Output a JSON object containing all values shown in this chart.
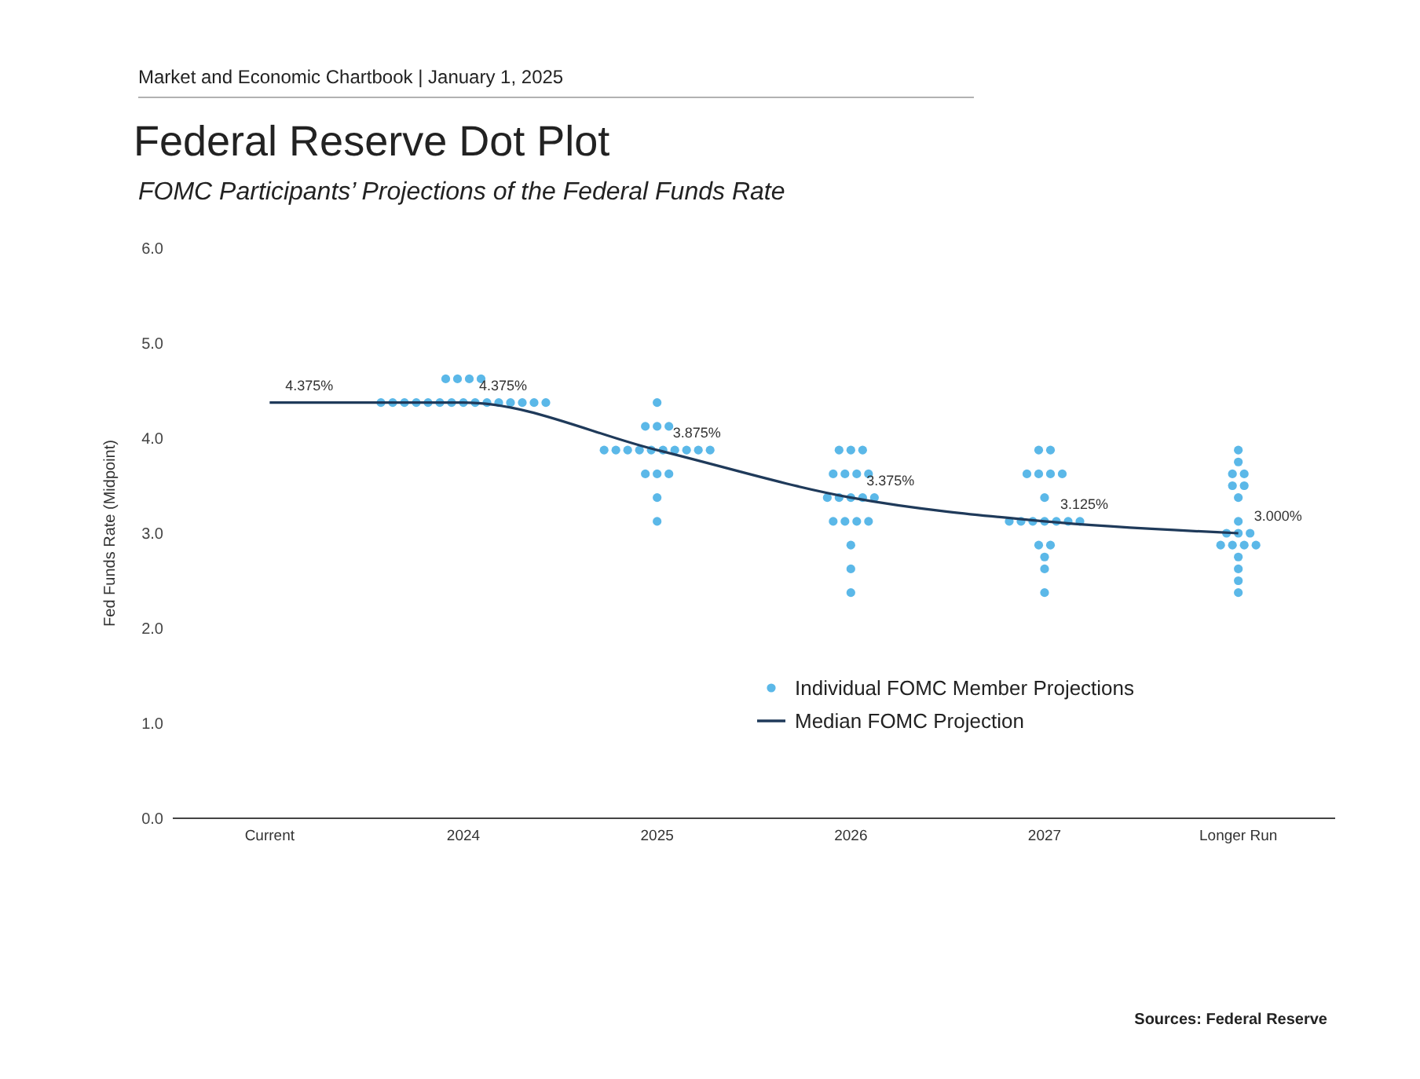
{
  "chart_data": {
    "type": "scatter",
    "title": "Federal Reserve Dot Plot",
    "subtitle": "FOMC Participants’ Projections of the Federal Funds Rate",
    "ylabel": "Fed Funds Rate (Midpoint)",
    "annotations": [
      "Market and Economic Chartbook | January 1, 2025",
      "Sources: Federal Reserve"
    ],
    "categories": [
      "Current",
      "2024",
      "2025",
      "2026",
      "2027",
      "Longer Run"
    ],
    "ylim": [
      0,
      6
    ],
    "yticks": [
      {
        "value": 0,
        "label": "0.0"
      },
      {
        "value": 1,
        "label": "1.0"
      },
      {
        "value": 2,
        "label": "2.0"
      },
      {
        "value": 3,
        "label": "3.0"
      },
      {
        "value": 4,
        "label": "4.0"
      },
      {
        "value": 5,
        "label": "5.0"
      },
      {
        "value": 6,
        "label": "6.0"
      }
    ],
    "grid": false,
    "legend": "bottom right",
    "marker": "circle",
    "series": [
      {
        "name": "Individual FOMC Member Projections",
        "color": "#5bb8e8",
        "values": [
          null,
          4.625,
          4.375,
          3.875,
          3.875,
          3.875
        ]
      },
      {
        "color": "#5bb8e8",
        "values": [
          null,
          4.625,
          4.125,
          3.875,
          3.875,
          3.75
        ]
      },
      {
        "color": "#5bb8e8",
        "values": [
          null,
          4.625,
          4.125,
          3.875,
          3.625,
          3.625
        ]
      },
      {
        "color": "#5bb8e8",
        "values": [
          null,
          4.625,
          4.125,
          3.625,
          3.625,
          3.625
        ]
      },
      {
        "color": "#5bb8e8",
        "values": [
          null,
          4.375,
          3.875,
          3.625,
          3.625,
          3.5
        ]
      },
      {
        "color": "#5bb8e8",
        "values": [
          null,
          4.375,
          3.875,
          3.625,
          3.625,
          3.5
        ]
      },
      {
        "color": "#5bb8e8",
        "values": [
          null,
          4.375,
          3.875,
          3.625,
          3.375,
          3.375
        ]
      },
      {
        "color": "#5bb8e8",
        "values": [
          null,
          4.375,
          3.875,
          3.375,
          3.125,
          3.125
        ]
      },
      {
        "color": "#5bb8e8",
        "values": [
          null,
          4.375,
          3.875,
          3.375,
          3.125,
          3.0
        ]
      },
      {
        "color": "#5bb8e8",
        "values": [
          null,
          4.375,
          3.875,
          3.375,
          3.125,
          3.0
        ]
      },
      {
        "color": "#5bb8e8",
        "values": [
          null,
          4.375,
          3.875,
          3.375,
          3.125,
          3.0
        ]
      },
      {
        "color": "#5bb8e8",
        "values": [
          null,
          4.375,
          3.875,
          3.375,
          3.125,
          2.875
        ]
      },
      {
        "color": "#5bb8e8",
        "values": [
          null,
          4.375,
          3.875,
          3.125,
          3.125,
          2.875
        ]
      },
      {
        "color": "#5bb8e8",
        "values": [
          null,
          4.375,
          3.875,
          3.125,
          3.125,
          2.875
        ]
      },
      {
        "color": "#5bb8e8",
        "values": [
          null,
          4.375,
          3.625,
          3.125,
          2.875,
          2.875
        ]
      },
      {
        "color": "#5bb8e8",
        "values": [
          null,
          4.375,
          3.625,
          3.125,
          2.875,
          2.75
        ]
      },
      {
        "color": "#5bb8e8",
        "values": [
          null,
          4.375,
          3.625,
          2.875,
          2.75,
          2.625
        ]
      },
      {
        "color": "#5bb8e8",
        "values": [
          null,
          4.375,
          3.375,
          2.625,
          2.625,
          2.5
        ]
      },
      {
        "color": "#5bb8e8",
        "values": [
          null,
          4.375,
          3.125,
          2.375,
          2.375,
          2.375
        ]
      },
      {
        "name": "Median FOMC Projection",
        "type": "line",
        "color": "#1f3a5a",
        "marker": "none",
        "line_style": "solid",
        "values": [
          4.375,
          4.375,
          3.875,
          3.375,
          3.125,
          3.0
        ],
        "value_labels": [
          "4.375%",
          "4.375%",
          "3.875%",
          "3.375%",
          "3.125%",
          "3.000%"
        ]
      }
    ]
  }
}
